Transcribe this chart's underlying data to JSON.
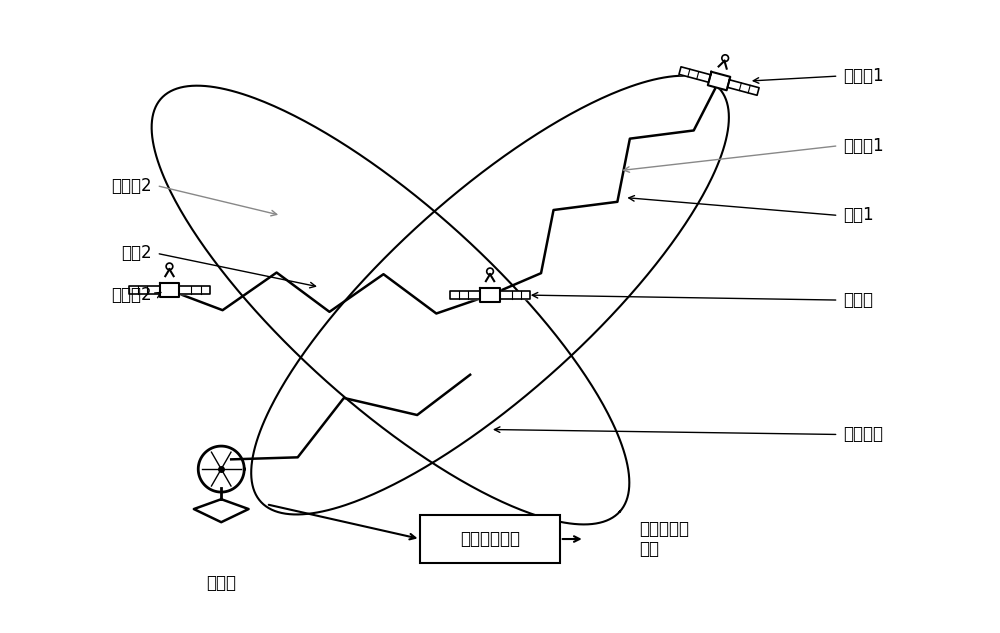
{
  "bg_color": "#ffffff",
  "text_color": "#000000",
  "line_color": "#000000",
  "gray_line_color": "#888888",
  "figsize": [
    10.0,
    6.33
  ],
  "dpi": 100,
  "labels": {
    "target_star1": "目标星1",
    "orbit_plane1": "轨道面1",
    "link1": "链路1",
    "node_star": "节点星",
    "target_star2": "目标星2",
    "orbit_plane2": "轨道面2",
    "link2": "链路2",
    "earth_link": "星地链路",
    "ground_station": "地面站",
    "data_processing": "测量数据处理",
    "orbit_determination": "确定卫星的\n轨道"
  }
}
